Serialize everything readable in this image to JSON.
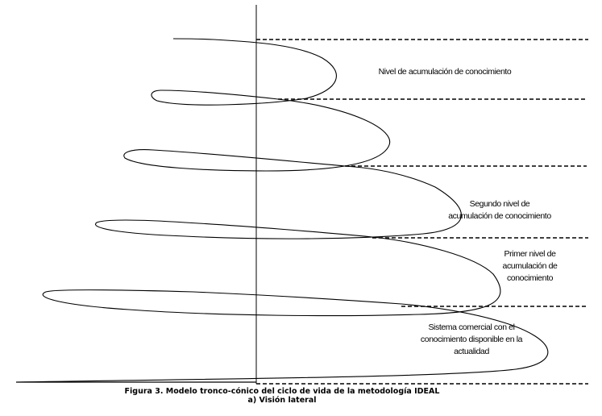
{
  "labels": {
    "level3": "Nivel de acumulación de conocimiento",
    "level2_line1": "Segundo nivel de",
    "level2_line2": "acumulación de conocimiento",
    "level1_line1": "Primer nivel de",
    "level1_line2": "acumulación de",
    "level1_line3": "conocimiento",
    "base_line1": "Sistema comercial con el",
    "base_line2": "conocimiento disponible en la",
    "base_line3": "actualidad"
  },
  "caption": {
    "line1": "Figura 3. Modelo tronco-cónico del ciclo de vida de la metodología IDEAL",
    "line2": "a) Visión lateral"
  },
  "colors": {
    "ink": "#000000",
    "background": "#ffffff"
  }
}
